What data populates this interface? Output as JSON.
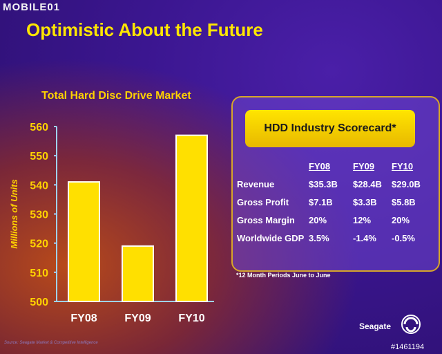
{
  "watermark": "MOBILE01",
  "slide_title": "Optimistic About the Future",
  "chart_data": {
    "type": "bar",
    "title": "Total Hard Disc Drive Market",
    "ylabel": "Millions of Units",
    "categories": [
      "FY08",
      "FY09",
      "FY10"
    ],
    "values": [
      541,
      519,
      557
    ],
    "ylim": [
      500,
      560
    ],
    "yticks": [
      500,
      510,
      520,
      530,
      540,
      550,
      560
    ],
    "grid": false,
    "colors": {
      "bar": "#ffe000",
      "bar_edge": "#ffffff",
      "axis": "#9fd3ff"
    }
  },
  "source_note": "Source: Seagate Market & Competitive Intelligence",
  "scorecard": {
    "title": "HDD Industry  Scorecard*",
    "headers": [
      "",
      "FY08",
      "FY09",
      "FY10"
    ],
    "rows": [
      [
        "Revenue",
        "$35.3B",
        "$28.4B",
        "$29.0B"
      ],
      [
        "Gross Profit",
        "$7.1B",
        "$3.3B",
        "$5.8B"
      ],
      [
        "Gross Margin",
        "20%",
        "12%",
        "20%"
      ],
      [
        "Worldwide GDP",
        "3.5%",
        "-1.4%",
        "-0.5%"
      ]
    ],
    "footnote": "*12 Month Periods June to June"
  },
  "logo": {
    "text": "Seagate",
    "icon": "seagate-swirl-icon"
  },
  "photo_id": "#1461194"
}
